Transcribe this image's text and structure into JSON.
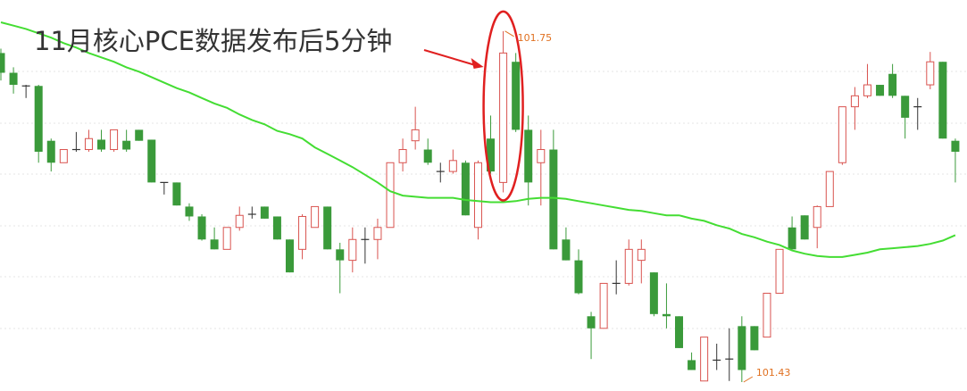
{
  "chart_data": {
    "type": "candlestick",
    "annotation": "11月核心PCE数据发布后5分钟",
    "up_color": "#d9534f",
    "down_color": "#3a9a3a",
    "doji_color": "#333333",
    "ma_color": "#44dd33",
    "label_color": "#e07020",
    "highlight_color": "#e02020",
    "open": [
      101.73,
      101.712,
      101.7,
      101.7,
      101.65,
      101.63,
      101.642,
      101.642,
      101.651,
      101.642,
      101.65,
      101.66,
      101.651,
      101.612,
      101.612,
      101.59,
      101.581,
      101.56,
      101.551,
      101.571,
      101.583,
      101.59,
      101.581,
      101.56,
      101.551,
      101.571,
      101.59,
      101.551,
      101.541,
      101.56,
      101.56,
      101.571,
      101.63,
      101.65,
      101.642,
      101.622,
      101.622,
      101.63,
      101.571,
      101.652,
      101.612,
      101.722,
      101.66,
      101.63,
      101.642,
      101.56,
      101.541,
      101.49,
      101.479,
      101.52,
      101.52,
      101.541,
      101.53,
      101.492,
      101.49,
      101.45,
      101.431,
      101.45,
      101.451,
      101.481,
      101.481,
      101.471,
      101.511,
      101.571,
      101.582,
      101.571,
      101.59,
      101.63,
      101.681,
      101.691,
      101.701,
      101.711,
      101.691,
      101.681,
      101.701,
      101.722,
      101.65
    ],
    "high": [
      101.734,
      101.717,
      101.701,
      101.701,
      101.652,
      101.642,
      101.658,
      101.66,
      101.66,
      101.66,
      101.66,
      101.66,
      101.651,
      101.612,
      101.612,
      101.593,
      101.583,
      101.571,
      101.571,
      101.59,
      101.59,
      101.59,
      101.581,
      101.56,
      101.583,
      101.59,
      101.59,
      101.557,
      101.571,
      101.571,
      101.579,
      101.63,
      101.652,
      101.681,
      101.652,
      101.63,
      101.642,
      101.632,
      101.632,
      101.673,
      101.75,
      101.73,
      101.673,
      101.66,
      101.66,
      101.571,
      101.551,
      101.494,
      101.52,
      101.541,
      101.56,
      101.56,
      101.53,
      101.52,
      101.49,
      101.457,
      101.471,
      101.465,
      101.479,
      101.49,
      101.481,
      101.511,
      101.551,
      101.581,
      101.582,
      101.591,
      101.622,
      101.681,
      101.699,
      101.72,
      101.701,
      101.72,
      101.691,
      101.689,
      101.731,
      101.722,
      101.652
    ],
    "low": [
      101.705,
      101.693,
      101.689,
      101.63,
      101.622,
      101.63,
      101.64,
      101.64,
      101.64,
      101.64,
      101.64,
      101.65,
      101.612,
      101.601,
      101.591,
      101.577,
      101.559,
      101.551,
      101.551,
      101.568,
      101.579,
      101.579,
      101.56,
      101.53,
      101.542,
      101.571,
      101.551,
      101.511,
      101.53,
      101.538,
      101.542,
      101.571,
      101.622,
      101.642,
      101.628,
      101.612,
      101.62,
      101.582,
      101.56,
      101.62,
      101.603,
      101.658,
      101.591,
      101.591,
      101.551,
      101.541,
      101.51,
      101.451,
      101.479,
      101.51,
      101.518,
      101.52,
      101.49,
      101.479,
      101.461,
      101.441,
      101.431,
      101.441,
      101.431,
      101.43,
      101.459,
      101.471,
      101.511,
      101.551,
      101.56,
      101.552,
      101.59,
      101.628,
      101.66,
      101.689,
      101.691,
      101.689,
      101.652,
      101.66,
      101.697,
      101.652,
      101.612
    ],
    "close": [
      101.712,
      101.701,
      101.7,
      101.64,
      101.63,
      101.642,
      101.642,
      101.652,
      101.642,
      101.66,
      101.642,
      101.65,
      101.612,
      101.612,
      101.591,
      101.581,
      101.56,
      101.551,
      101.571,
      101.582,
      101.583,
      101.579,
      101.56,
      101.53,
      101.581,
      101.59,
      101.551,
      101.541,
      101.56,
      101.56,
      101.571,
      101.63,
      101.642,
      101.66,
      101.63,
      101.622,
      101.632,
      101.582,
      101.63,
      101.622,
      101.73,
      101.66,
      101.612,
      101.642,
      101.551,
      101.541,
      101.511,
      101.479,
      101.52,
      101.52,
      101.551,
      101.551,
      101.492,
      101.49,
      101.461,
      101.441,
      101.471,
      101.45,
      101.451,
      101.441,
      101.459,
      101.511,
      101.551,
      101.551,
      101.56,
      101.59,
      101.622,
      101.681,
      101.691,
      101.701,
      101.691,
      101.691,
      101.671,
      101.681,
      101.722,
      101.652,
      101.64
    ],
    "ma_values": [
      101.758,
      101.755,
      101.752,
      101.748,
      101.744,
      101.739,
      101.735,
      101.73,
      101.726,
      101.722,
      101.717,
      101.713,
      101.708,
      101.703,
      101.698,
      101.694,
      101.689,
      101.684,
      101.68,
      101.674,
      101.669,
      101.665,
      101.659,
      101.656,
      101.652,
      101.644,
      101.638,
      101.632,
      101.626,
      101.619,
      101.612,
      101.604,
      101.6,
      101.599,
      101.598,
      101.598,
      101.598,
      101.596,
      101.595,
      101.594,
      101.594,
      101.595,
      101.597,
      101.598,
      101.598,
      101.597,
      101.595,
      101.593,
      101.591,
      101.589,
      101.587,
      101.586,
      101.584,
      101.582,
      101.582,
      101.579,
      101.577,
      101.573,
      101.57,
      101.565,
      101.562,
      101.558,
      101.555,
      101.55,
      101.547,
      101.545,
      101.544,
      101.544,
      101.546,
      101.548,
      101.551,
      101.552,
      101.553,
      101.554,
      101.556,
      101.559,
      101.564
    ]
  }
}
